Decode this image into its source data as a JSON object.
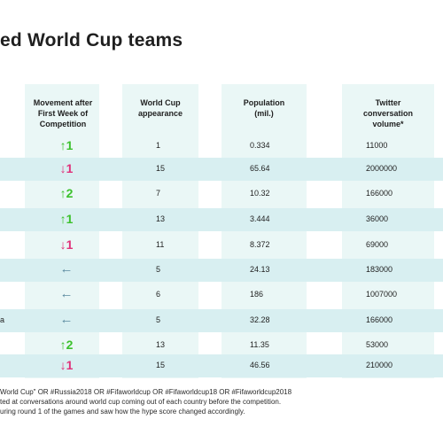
{
  "title": "ed World Cup teams",
  "columns": {
    "movement": "Movement after\nFirst Week of\nCompetition",
    "appearance": "World Cup\nappearance",
    "population": "Population\n(mil.)",
    "twitter": "Twitter\nconversation\nvolume*"
  },
  "rows": [
    {
      "trail": "",
      "movement": "↑1",
      "dir": "up",
      "appearance": "1",
      "population": "0.334",
      "twitter": "11000"
    },
    {
      "trail": "",
      "movement": "↓1",
      "dir": "down",
      "appearance": "15",
      "population": "65.64",
      "twitter": "2000000"
    },
    {
      "trail": "",
      "movement": "↑2",
      "dir": "up",
      "appearance": "7",
      "population": "10.32",
      "twitter": "166000"
    },
    {
      "trail": "",
      "movement": "↑1",
      "dir": "up",
      "appearance": "13",
      "population": "3.444",
      "twitter": "36000"
    },
    {
      "trail": "",
      "movement": "↓1",
      "dir": "down",
      "appearance": "11",
      "population": "8.372",
      "twitter": "69000"
    },
    {
      "trail": "",
      "movement": "←",
      "dir": "side",
      "appearance": "5",
      "population": "24.13",
      "twitter": "183000"
    },
    {
      "trail": "",
      "movement": "←",
      "dir": "side",
      "appearance": "6",
      "population": "186",
      "twitter": "1007000"
    },
    {
      "trail": "a",
      "movement": "←",
      "dir": "side",
      "appearance": "5",
      "population": "32.28",
      "twitter": "166000"
    },
    {
      "trail": "",
      "movement": "↑2",
      "dir": "up",
      "appearance": "13",
      "population": "11.35",
      "twitter": "53000"
    },
    {
      "trail": "",
      "movement": "↓1",
      "dir": "down",
      "appearance": "15",
      "population": "46.56",
      "twitter": "210000"
    }
  ],
  "footnotes": [
    "World Cup\" OR #Russia2018 OR #Fifaworldcup OR #Fifaworldcup18 OR #Fifaworldcup2018",
    "ted at conversations around world cup coming out of each country before the competition.",
    "uring round 1 of the games and saw how the hype score changed accordingly."
  ],
  "colors": {
    "up": "#3cc12d",
    "down": "#e0317a",
    "side": "#5b8aa0",
    "band": "#d8eff1",
    "column": "#eaf7f6"
  }
}
